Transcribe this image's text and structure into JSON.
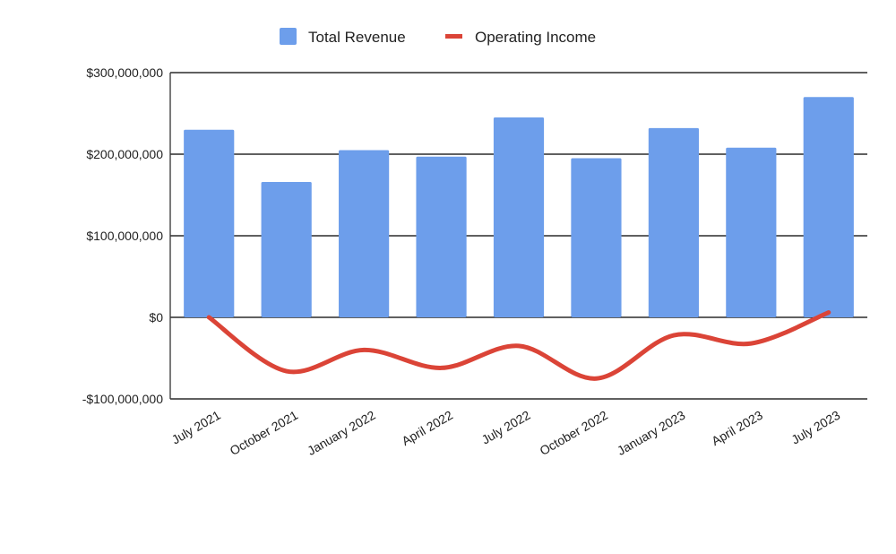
{
  "chart_data": {
    "type": "bar",
    "categories": [
      "July 2021",
      "October 2021",
      "January 2022",
      "April 2022",
      "July 2022",
      "October 2022",
      "January 2023",
      "April 2023",
      "July 2023"
    ],
    "series": [
      {
        "name": "Total Revenue",
        "type": "bar",
        "color": "#6d9eeb",
        "values": [
          230000000,
          166000000,
          205000000,
          197000000,
          245000000,
          195000000,
          232000000,
          208000000,
          270000000
        ]
      },
      {
        "name": "Operating Income",
        "type": "line",
        "smooth": true,
        "color": "#db4437",
        "values": [
          0,
          -66000000,
          -40000000,
          -62000000,
          -35000000,
          -75000000,
          -22000000,
          -32000000,
          6000000
        ]
      }
    ],
    "title": "",
    "xlabel": "",
    "ylabel": "",
    "ylim": [
      -100000000,
      300000000
    ],
    "yticks": [
      300000000,
      200000000,
      100000000,
      0,
      -100000000
    ],
    "ytick_labels": [
      "$300,000,000",
      "$200,000,000",
      "$100,000,000",
      "$0",
      "-$100,000,000"
    ],
    "grid": true,
    "legend_position": "top-center"
  }
}
